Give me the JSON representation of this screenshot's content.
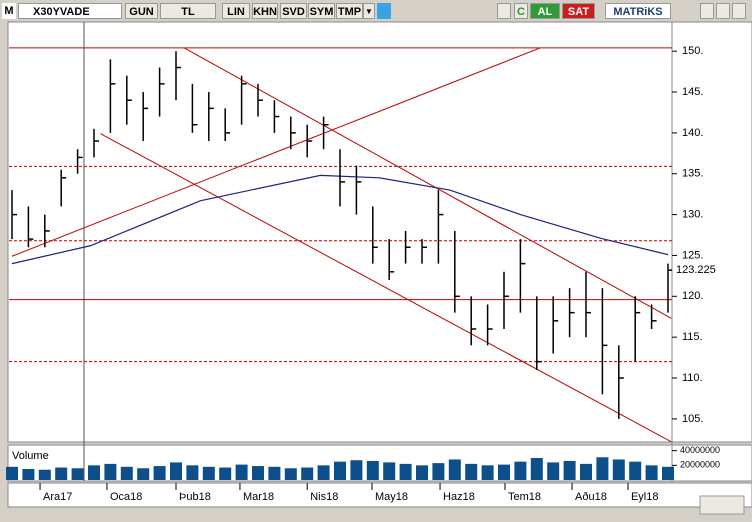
{
  "toolbar": {
    "logo": "M",
    "symbol": "X30YVADE",
    "period": "GUN",
    "currency": "TL",
    "buttons": [
      "LIN",
      "KHN",
      "SVD",
      "SYM",
      "TMP"
    ],
    "refresh": "C",
    "buy": "AL",
    "sell": "SAT",
    "brand": "MATRiKS"
  },
  "chart_data": {
    "type": "ohlc",
    "x": [
      0,
      1,
      2,
      3,
      4,
      5,
      6,
      7,
      8,
      9,
      10,
      11,
      12,
      13,
      14,
      15,
      16,
      17,
      18,
      19,
      20,
      21,
      22,
      23,
      24,
      25,
      26,
      27,
      28,
      29,
      30,
      31,
      32,
      33,
      34,
      35,
      36,
      37,
      38,
      39,
      40
    ],
    "high": [
      133,
      131,
      130,
      135.5,
      138,
      140.5,
      149,
      147,
      145,
      148,
      150,
      146,
      145,
      143,
      147,
      146,
      144,
      142,
      141,
      142,
      138,
      136,
      131,
      127,
      128,
      127,
      133,
      128,
      120,
      119,
      123,
      127,
      120,
      120,
      121,
      123,
      121,
      114,
      120,
      119,
      124
    ],
    "low": [
      127,
      126,
      126,
      131,
      135,
      137,
      140,
      141,
      139,
      142,
      144,
      140,
      139,
      139,
      141,
      142,
      140,
      138,
      137,
      138,
      131,
      130,
      124,
      122,
      124,
      124,
      124,
      118,
      114,
      114,
      116,
      118,
      111,
      113,
      115,
      115,
      108,
      105,
      112,
      116,
      118
    ],
    "close": [
      130,
      127,
      128,
      134.5,
      137,
      139,
      146,
      144,
      143,
      146,
      148,
      141,
      143,
      140,
      146,
      144,
      142,
      140,
      139,
      141,
      134,
      134,
      126,
      123,
      126,
      126,
      130,
      120,
      116,
      116,
      120,
      124,
      112,
      117,
      118,
      118,
      114,
      110,
      118,
      117,
      123.2
    ],
    "color": "#000000",
    "moving_average": {
      "color": "#1a237e",
      "x": [
        0,
        4.8,
        11.5,
        18.8,
        22.4,
        26.7,
        31,
        35.9,
        40
      ],
      "values": [
        124,
        126.2,
        131.7,
        134.8,
        134.5,
        133,
        130,
        127.1,
        125.1
      ]
    },
    "levels": {
      "color": "#c00000",
      "solid": [
        150.4,
        119.6
      ],
      "dashed": [
        135.9,
        126.8,
        112
      ]
    },
    "trendlines": [
      [
        [
          10.5,
          150.4
        ],
        [
          40.2,
          117.3
        ]
      ],
      [
        [
          5.4,
          139.9
        ],
        [
          40.2,
          102.2
        ]
      ],
      [
        [
          0,
          124.9
        ],
        [
          32.2,
          150.4
        ]
      ]
    ],
    "last_price": {
      "value": 123.225,
      "label": "123.225"
    },
    "xlim": [
      0,
      40
    ],
    "xticks": [
      {
        "value": 1.71,
        "label": "Ara17"
      },
      {
        "value": 5.79,
        "label": "Oca18"
      },
      {
        "value": 10.0,
        "label": "Þub18"
      },
      {
        "value": 13.9,
        "label": "Mar18"
      },
      {
        "value": 18.0,
        "label": "Nis18"
      },
      {
        "value": 21.95,
        "label": "May18"
      },
      {
        "value": 26.1,
        "label": "Haz18"
      },
      {
        "value": 30.06,
        "label": "Tem18"
      },
      {
        "value": 34.15,
        "label": "Aðu18"
      },
      {
        "value": 37.56,
        "label": "Eyl18"
      }
    ],
    "ylim": [
      102.17,
      153.57
    ],
    "yticks": [
      {
        "value": 105,
        "label": "105."
      },
      {
        "value": 110,
        "label": "110."
      },
      {
        "value": 115,
        "label": "115."
      },
      {
        "value": 120,
        "label": "120."
      },
      {
        "value": 125,
        "label": "125."
      },
      {
        "value": 130,
        "label": "130."
      },
      {
        "value": 135,
        "label": "135."
      },
      {
        "value": 140,
        "label": "140."
      },
      {
        "value": 145,
        "label": "145."
      },
      {
        "value": 150,
        "label": "150."
      }
    ],
    "grid": false,
    "volume": {
      "name": "Volume",
      "color": "#0d4f8b",
      "values": [
        18000000,
        15000000,
        14000000,
        17000000,
        16000000,
        20000000,
        22000000,
        18000000,
        16000000,
        19000000,
        24000000,
        20000000,
        18000000,
        17000000,
        21000000,
        19000000,
        18000000,
        16000000,
        17000000,
        20000000,
        25000000,
        27000000,
        26000000,
        24000000,
        22000000,
        20000000,
        23000000,
        28000000,
        22000000,
        20000000,
        21000000,
        25000000,
        30000000,
        24000000,
        26000000,
        22000000,
        31000000,
        28000000,
        25000000,
        20000000,
        18000000
      ],
      "ylim": [
        0,
        45000000
      ],
      "yticks": [
        {
          "value": 20000000,
          "label": "20000000"
        },
        {
          "value": 40000000,
          "label": "40000000"
        }
      ]
    }
  }
}
